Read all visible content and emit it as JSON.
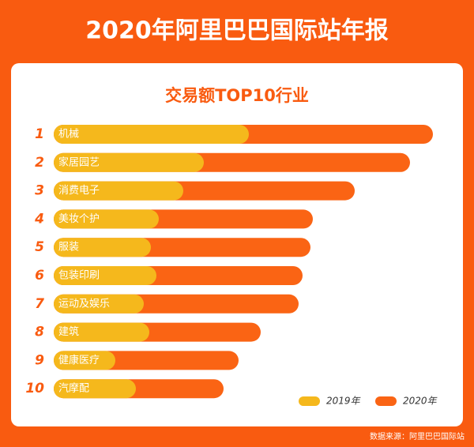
{
  "chart_data": {
    "type": "overlap-bar",
    "title": "2020年阿里巴巴国际站年报",
    "subtitle": "交易额TOP10行业",
    "source": "数据来源：阿里巴巴国际站",
    "ranks": [
      "1",
      "2",
      "3",
      "4",
      "5",
      "6",
      "7",
      "8",
      "9",
      "10"
    ],
    "categories": [
      "机械",
      "家居园艺",
      "消费电子",
      "美妆个护",
      "服装",
      "包装印刷",
      "运动及娱乐",
      "建筑",
      "健康医疗",
      "汽摩配"
    ],
    "series": [
      {
        "name": "2020年",
        "color": "#fa6414",
        "values": [
          480,
          451,
          381,
          328,
          325,
          315,
          310,
          262,
          234,
          215
        ]
      },
      {
        "name": "2019年",
        "color": "#f5b81c",
        "values": [
          247,
          190,
          164,
          133,
          123,
          130,
          114,
          121,
          78,
          104
        ]
      }
    ],
    "legend": "bottom-right"
  }
}
